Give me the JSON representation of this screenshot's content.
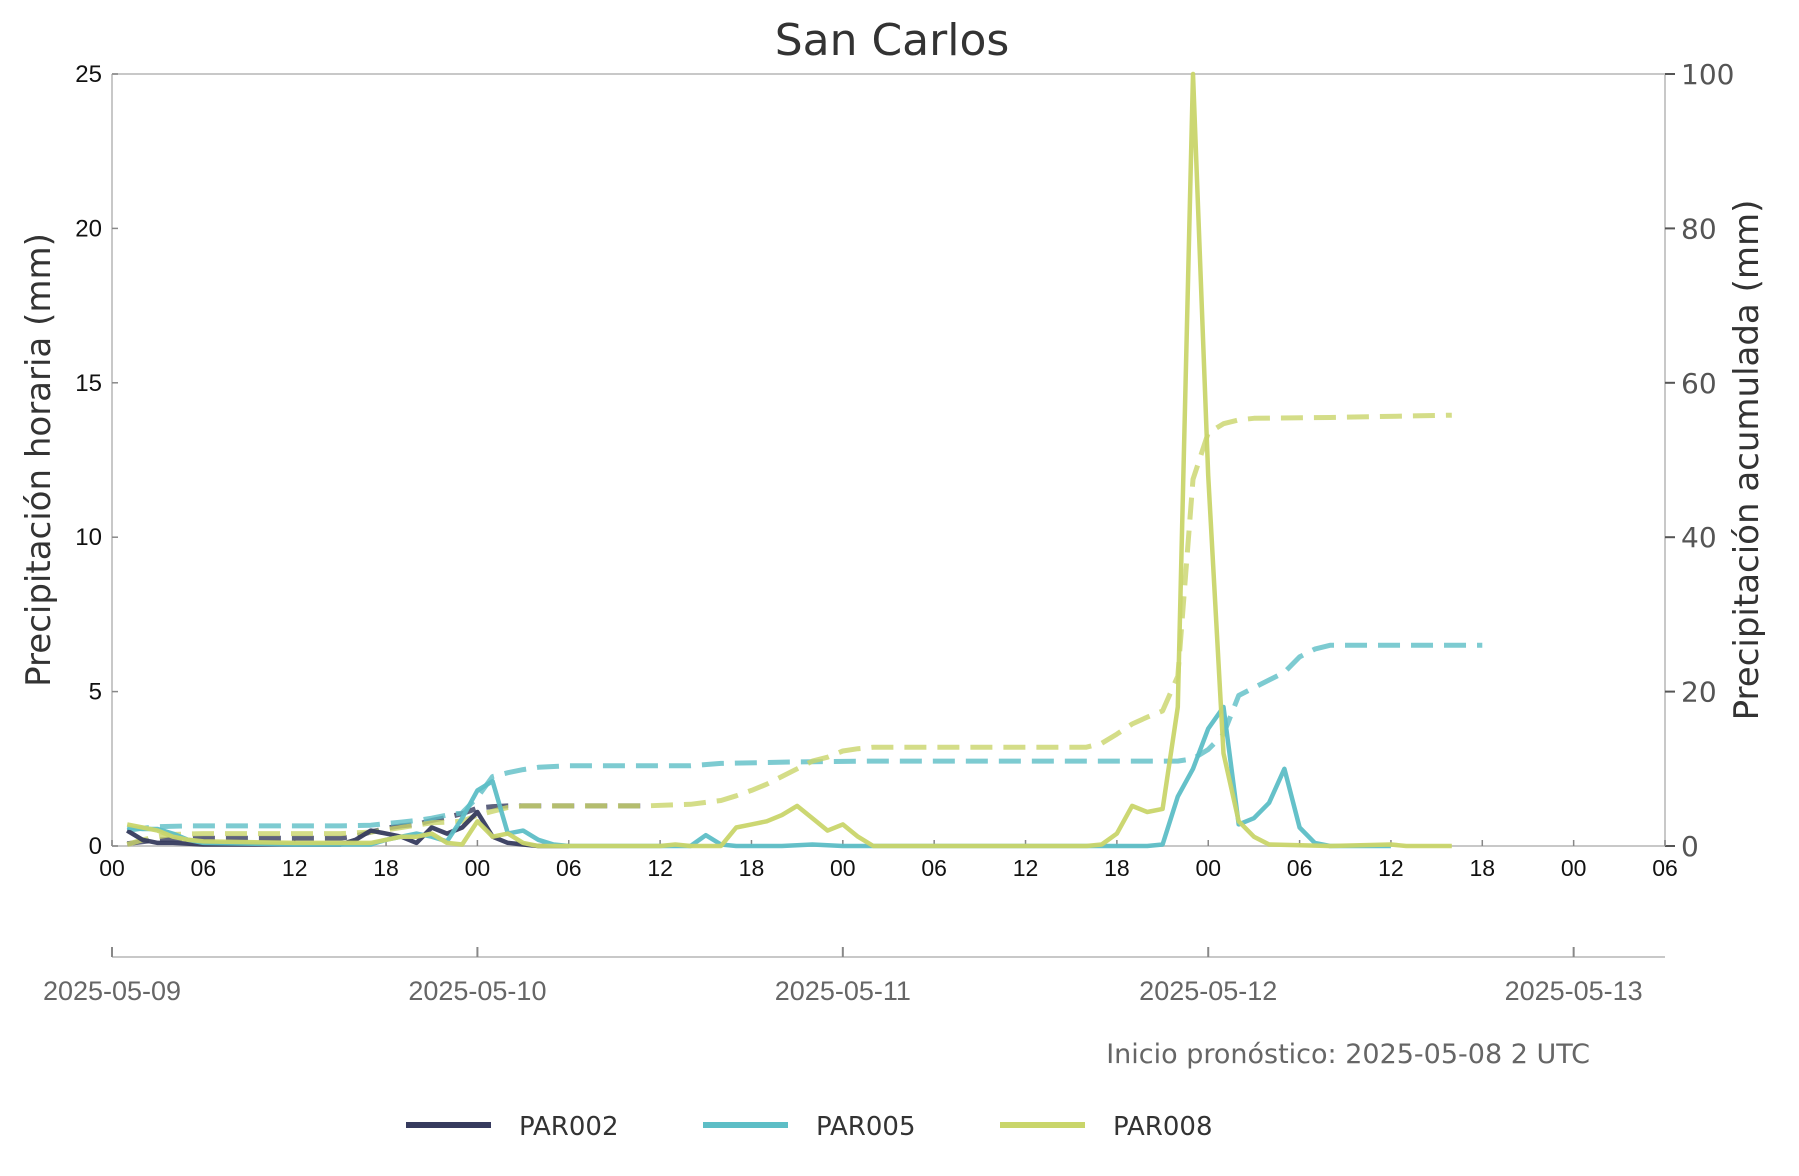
{
  "chart_data": {
    "type": "line",
    "title": "San Carlos",
    "ylabel_left": "Precipitación horaria (mm)",
    "ylabel_right": "Precipitación acumulada (mm)",
    "ylim_left": [
      0,
      25
    ],
    "ylim_right": [
      0,
      100
    ],
    "yticks_left": [
      "0",
      "5",
      "10",
      "15",
      "20",
      "25"
    ],
    "yticks_right": [
      "0",
      "20",
      "40",
      "60",
      "80",
      "100"
    ],
    "hour_ticks": [
      "00",
      "06",
      "12",
      "18",
      "00",
      "06",
      "12",
      "18",
      "00",
      "06",
      "12",
      "18",
      "00",
      "06",
      "12",
      "18",
      "00",
      "06"
    ],
    "date_ticks": [
      "2025-05-09",
      "2025-05-10",
      "2025-05-11",
      "2025-05-12",
      "2025-05-13"
    ],
    "x_unit": "hours from 2025-05-09 00 UTC",
    "xlim": [
      0,
      102
    ],
    "footnote": "Inicio pronóstico: 2025-05-08 2 UTC",
    "grid": false,
    "legend_position": "bottom",
    "series": [
      {
        "name": "PAR002",
        "color": "#363b5e",
        "hourly": [
          [
            1,
            0.5
          ],
          [
            2,
            0.2
          ],
          [
            3,
            0.1
          ],
          [
            4,
            0.1
          ],
          [
            6,
            0.05
          ],
          [
            12,
            0.05
          ],
          [
            15,
            0.05
          ],
          [
            16,
            0.2
          ],
          [
            17,
            0.5
          ],
          [
            18,
            0.4
          ],
          [
            19,
            0.3
          ],
          [
            20,
            0.1
          ],
          [
            21,
            0.6
          ],
          [
            22,
            0.4
          ],
          [
            23,
            0.6
          ],
          [
            24,
            1.1
          ],
          [
            25,
            0.3
          ],
          [
            26,
            0.1
          ],
          [
            27,
            0.05
          ],
          [
            28,
            0.0
          ],
          [
            30,
            0.0
          ]
        ],
        "accumulated": [
          [
            1,
            0.3
          ],
          [
            3,
            0.8
          ],
          [
            5,
            1.0
          ],
          [
            12,
            1.0
          ],
          [
            15,
            1.0
          ],
          [
            16,
            1.3
          ],
          [
            17,
            1.8
          ],
          [
            18,
            2.3
          ],
          [
            19,
            2.6
          ],
          [
            20,
            2.8
          ],
          [
            21,
            3.3
          ],
          [
            22,
            3.7
          ],
          [
            23,
            4.2
          ],
          [
            24,
            4.9
          ],
          [
            25,
            5.1
          ],
          [
            26,
            5.2
          ],
          [
            35,
            5.2
          ]
        ]
      },
      {
        "name": "PAR005",
        "color": "#5dbec6",
        "hourly": [
          [
            1,
            0.6
          ],
          [
            2,
            0.55
          ],
          [
            3,
            0.55
          ],
          [
            4,
            0.4
          ],
          [
            5,
            0.2
          ],
          [
            6,
            0.1
          ],
          [
            12,
            0.05
          ],
          [
            17,
            0.05
          ],
          [
            18,
            0.2
          ],
          [
            19,
            0.3
          ],
          [
            20,
            0.4
          ],
          [
            21,
            0.3
          ],
          [
            22,
            0.15
          ],
          [
            23,
            0.9
          ],
          [
            24,
            1.8
          ],
          [
            25,
            2.1
          ],
          [
            26,
            0.4
          ],
          [
            27,
            0.5
          ],
          [
            28,
            0.2
          ],
          [
            29,
            0.05
          ],
          [
            30,
            0.0
          ],
          [
            38,
            0.0
          ],
          [
            39,
            0.35
          ],
          [
            40,
            0.05
          ],
          [
            41,
            0.0
          ],
          [
            44,
            0.0
          ],
          [
            46,
            0.05
          ],
          [
            48,
            0.0
          ],
          [
            68,
            0.0
          ],
          [
            69,
            0.05
          ],
          [
            70,
            1.6
          ],
          [
            71,
            2.5
          ],
          [
            72,
            3.8
          ],
          [
            73,
            4.5
          ],
          [
            74,
            0.7
          ],
          [
            75,
            0.9
          ],
          [
            76,
            1.4
          ],
          [
            77,
            2.5
          ],
          [
            78,
            0.6
          ],
          [
            79,
            0.1
          ],
          [
            80,
            0.0
          ],
          [
            84,
            0.0
          ]
        ],
        "accumulated": [
          [
            1,
            2.0
          ],
          [
            2,
            2.3
          ],
          [
            3,
            2.5
          ],
          [
            5,
            2.6
          ],
          [
            12,
            2.6
          ],
          [
            15,
            2.6
          ],
          [
            17,
            2.7
          ],
          [
            18,
            2.9
          ],
          [
            19,
            3.1
          ],
          [
            20,
            3.3
          ],
          [
            21,
            3.6
          ],
          [
            22,
            4.0
          ],
          [
            23,
            4.3
          ],
          [
            24,
            6.3
          ],
          [
            25,
            9.0
          ],
          [
            26,
            9.5
          ],
          [
            27,
            9.9
          ],
          [
            28,
            10.2
          ],
          [
            30,
            10.4
          ],
          [
            38,
            10.4
          ],
          [
            40,
            10.7
          ],
          [
            45,
            10.9
          ],
          [
            50,
            11.0
          ],
          [
            70,
            11.0
          ],
          [
            71,
            11.3
          ],
          [
            72,
            12.5
          ],
          [
            73,
            14.5
          ],
          [
            74,
            19.5
          ],
          [
            75,
            20.5
          ],
          [
            76,
            21.5
          ],
          [
            77,
            22.5
          ],
          [
            78,
            24.5
          ],
          [
            79,
            25.5
          ],
          [
            80,
            26.0
          ],
          [
            84,
            26.0
          ],
          [
            90,
            26.0
          ]
        ]
      },
      {
        "name": "PAR008",
        "color": "#c9d56a",
        "hourly": [
          [
            1,
            0.7
          ],
          [
            2,
            0.6
          ],
          [
            3,
            0.5
          ],
          [
            4,
            0.3
          ],
          [
            5,
            0.2
          ],
          [
            6,
            0.15
          ],
          [
            12,
            0.1
          ],
          [
            15,
            0.1
          ],
          [
            17,
            0.1
          ],
          [
            18,
            0.2
          ],
          [
            19,
            0.3
          ],
          [
            20,
            0.3
          ],
          [
            21,
            0.4
          ],
          [
            22,
            0.1
          ],
          [
            23,
            0.05
          ],
          [
            24,
            0.8
          ],
          [
            25,
            0.3
          ],
          [
            26,
            0.4
          ],
          [
            27,
            0.1
          ],
          [
            28,
            0.0
          ],
          [
            36,
            0.0
          ],
          [
            37,
            0.05
          ],
          [
            38,
            0.0
          ],
          [
            40,
            0.0
          ],
          [
            41,
            0.6
          ],
          [
            42,
            0.7
          ],
          [
            43,
            0.8
          ],
          [
            44,
            1.0
          ],
          [
            45,
            1.3
          ],
          [
            46,
            0.9
          ],
          [
            47,
            0.5
          ],
          [
            48,
            0.7
          ],
          [
            49,
            0.3
          ],
          [
            50,
            0.0
          ],
          [
            64,
            0.0
          ],
          [
            65,
            0.05
          ],
          [
            66,
            0.4
          ],
          [
            67,
            1.3
          ],
          [
            68,
            1.1
          ],
          [
            69,
            1.2
          ],
          [
            70,
            4.5
          ],
          [
            71,
            25.5
          ],
          [
            72,
            12.0
          ],
          [
            73,
            3.0
          ],
          [
            74,
            0.8
          ],
          [
            75,
            0.3
          ],
          [
            76,
            0.05
          ],
          [
            80,
            0.0
          ],
          [
            84,
            0.05
          ],
          [
            85,
            0.0
          ],
          [
            88,
            0.0
          ]
        ],
        "accumulated": [
          [
            1,
            0.2
          ],
          [
            2,
            0.8
          ],
          [
            3,
            1.2
          ],
          [
            4,
            1.5
          ],
          [
            6,
            1.6
          ],
          [
            12,
            1.6
          ],
          [
            15,
            1.6
          ],
          [
            17,
            1.8
          ],
          [
            18,
            2.1
          ],
          [
            19,
            2.4
          ],
          [
            20,
            2.7
          ],
          [
            21,
            3.0
          ],
          [
            22,
            3.1
          ],
          [
            23,
            3.2
          ],
          [
            24,
            4.0
          ],
          [
            25,
            4.5
          ],
          [
            26,
            5.0
          ],
          [
            27,
            5.2
          ],
          [
            35,
            5.2
          ],
          [
            38,
            5.4
          ],
          [
            40,
            5.9
          ],
          [
            41,
            6.5
          ],
          [
            42,
            7.2
          ],
          [
            43,
            8.0
          ],
          [
            44,
            9.0
          ],
          [
            45,
            10.0
          ],
          [
            46,
            11.0
          ],
          [
            47,
            11.5
          ],
          [
            48,
            12.3
          ],
          [
            49,
            12.6
          ],
          [
            50,
            12.8
          ],
          [
            64,
            12.8
          ],
          [
            65,
            13.3
          ],
          [
            66,
            14.5
          ],
          [
            67,
            15.8
          ],
          [
            68,
            16.7
          ],
          [
            69,
            17.5
          ],
          [
            70,
            22.0
          ],
          [
            71,
            47.5
          ],
          [
            72,
            53.5
          ],
          [
            73,
            54.7
          ],
          [
            74,
            55.2
          ],
          [
            75,
            55.4
          ],
          [
            80,
            55.5
          ],
          [
            88,
            55.8
          ]
        ]
      }
    ]
  }
}
